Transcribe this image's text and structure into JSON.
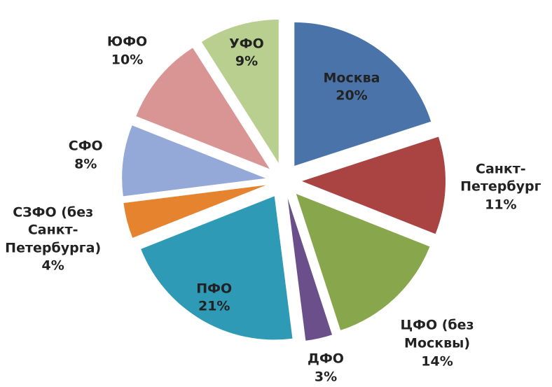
{
  "chart_data": {
    "type": "pie",
    "categories": [
      "Москва",
      "Санкт-\nПетербург",
      "ЦФО (без\nМосквы)",
      "ДФО",
      "ПФО",
      "СЗФО (без\nСанкт-\nПетербурга)",
      "СФО",
      "ЮФО",
      "УФО"
    ],
    "values": [
      20,
      11,
      14,
      3,
      21,
      4,
      8,
      10,
      9
    ],
    "value_labels": [
      "20%",
      "11%",
      "14%",
      "3%",
      "21%",
      "4%",
      "8%",
      "10%",
      "9%"
    ],
    "colors": [
      "#4a74a9",
      "#a94442",
      "#88a64c",
      "#6a4f8b",
      "#2f9ab5",
      "#e6832f",
      "#94a9d7",
      "#d99594",
      "#b9cf90"
    ]
  }
}
